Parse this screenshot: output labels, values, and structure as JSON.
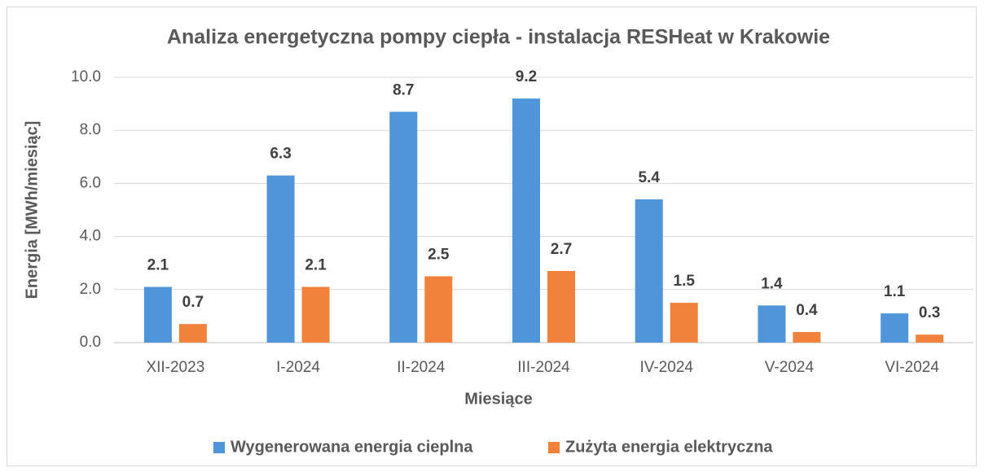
{
  "chart_data": {
    "type": "bar",
    "title": "Analiza energetyczna pompy ciepła - instalacja RESHeat w Krakowie",
    "x_label": "Miesiące",
    "y_label": "Energia [MWh/miesiąc]",
    "categories": [
      "XII-2023",
      "I-2024",
      "II-2024",
      "III-2024",
      "IV-2024",
      "V-2024",
      "VI-2024"
    ],
    "series": [
      {
        "name": "Wygenerowana energia cieplna",
        "color": "#4e95d9",
        "values": [
          2.1,
          6.3,
          8.7,
          9.2,
          5.4,
          1.4,
          1.1
        ]
      },
      {
        "name": "Zużyta energia elektryczna",
        "color": "#f0823c",
        "values": [
          0.7,
          2.1,
          2.5,
          2.7,
          1.5,
          0.4,
          0.3
        ]
      }
    ],
    "ylim": [
      0,
      10
    ],
    "yticks": [
      {
        "value": 0,
        "label": "0.0"
      },
      {
        "value": 2,
        "label": "2.0"
      },
      {
        "value": 4,
        "label": "4.0"
      },
      {
        "value": 6,
        "label": "6.0"
      },
      {
        "value": 8,
        "label": "8.0"
      },
      {
        "value": 10,
        "label": "10.0"
      }
    ],
    "grid": true,
    "legend": "bottom"
  }
}
